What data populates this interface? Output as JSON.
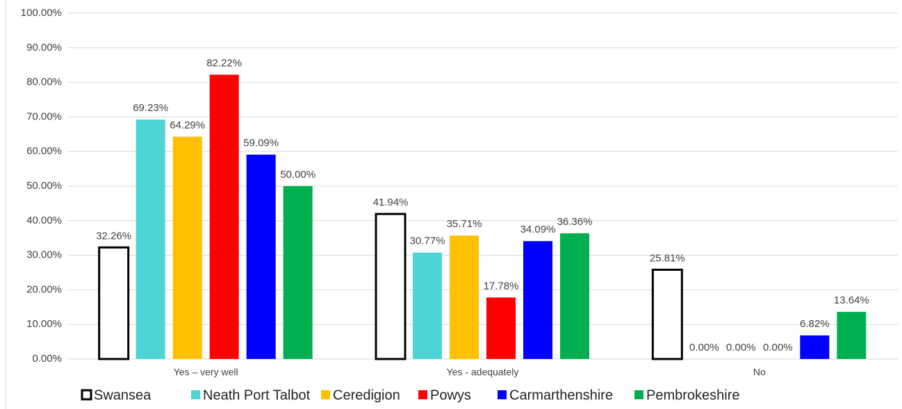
{
  "chart_data": {
    "type": "bar",
    "categories": [
      "Yes – very well",
      "Yes - adequately",
      "No"
    ],
    "series": [
      {
        "name": "Swansea",
        "color": "#ffffff",
        "values": [
          32.26,
          41.94,
          25.81
        ],
        "value_labels": [
          "32.26%",
          "41.94%",
          "25.81%"
        ]
      },
      {
        "name": "Neath Port Talbot",
        "color": "#4dd5d5",
        "values": [
          69.23,
          30.77,
          0
        ],
        "value_labels": [
          "69.23%",
          "30.77%",
          "0.00%"
        ]
      },
      {
        "name": "Ceredigion",
        "color": "#ffc000",
        "values": [
          64.29,
          35.71,
          0
        ],
        "value_labels": [
          "64.29%",
          "35.71%",
          "0.00%"
        ]
      },
      {
        "name": "Powys",
        "color": "#ff0000",
        "values": [
          82.22,
          17.78,
          0
        ],
        "value_labels": [
          "82.22%",
          "17.78%",
          "0.00%"
        ]
      },
      {
        "name": "Carmarthenshire",
        "color": "#0000ff",
        "values": [
          59.09,
          34.09,
          6.82
        ],
        "value_labels": [
          "59.09%",
          "34.09%",
          "6.82%"
        ]
      },
      {
        "name": "Pembrokeshire",
        "color": "#00b050",
        "values": [
          50.0,
          36.36,
          13.64
        ],
        "value_labels": [
          "50.00%",
          "36.36%",
          "13.64%"
        ]
      }
    ],
    "ylim": [
      0,
      100
    ],
    "yticks": [
      {
        "value": 0,
        "label": "0.00%"
      },
      {
        "value": 10,
        "label": "10.00%"
      },
      {
        "value": 20,
        "label": "20.00%"
      },
      {
        "value": 30,
        "label": "30.00%"
      },
      {
        "value": 40,
        "label": "40.00%"
      },
      {
        "value": 50,
        "label": "50.00%"
      },
      {
        "value": 60,
        "label": "60.00%"
      },
      {
        "value": 70,
        "label": "70.00%"
      },
      {
        "value": 80,
        "label": "80.00%"
      },
      {
        "value": 90,
        "label": "90.00%"
      },
      {
        "value": 100,
        "label": "100.00%"
      }
    ],
    "grid": true,
    "legend": "bottom"
  }
}
